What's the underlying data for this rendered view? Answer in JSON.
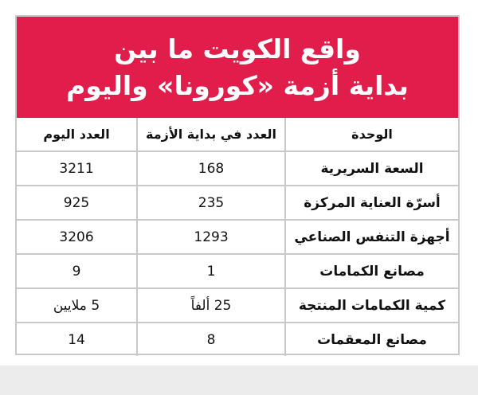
{
  "title": {
    "line1": "واقع الكويت ما بين",
    "line2": "بداية أزمة «كورونا» واليوم"
  },
  "table": {
    "headers": [
      "الوحدة",
      "العدد في بداية الأزمة",
      "العدد اليوم"
    ],
    "rows": [
      [
        "السعة السريرية",
        "168",
        "3211"
      ],
      [
        "أسرّة العناية المركزة",
        "235",
        "925"
      ],
      [
        "أجهزة التنفس الصناعي",
        "1293",
        "3206"
      ],
      [
        "مصانع الكمامات",
        "1",
        "9"
      ],
      [
        "كمية الكمامات المنتجة",
        "25 ألفاً",
        "5 ملايين"
      ],
      [
        "مصانع المعقمات",
        "8",
        "14"
      ]
    ]
  },
  "colors": {
    "banner": "#e11e4b",
    "grid": "#c9c9c9",
    "footer": "#ececec"
  }
}
